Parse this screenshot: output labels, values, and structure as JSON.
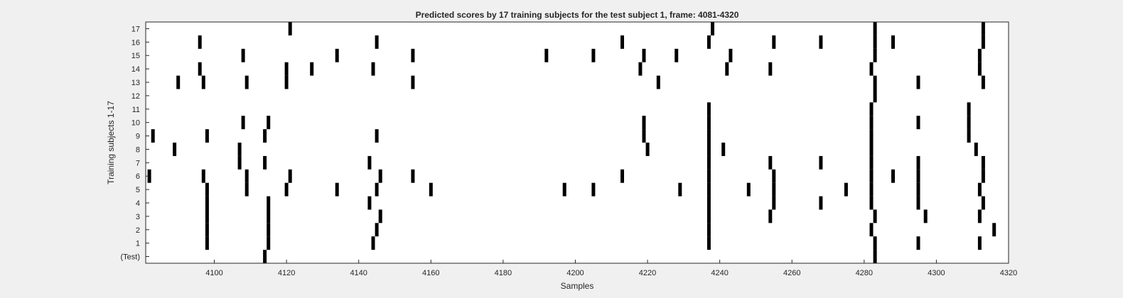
{
  "figure": {
    "background_color": "#f0f0f0",
    "axes_color": "#ffffff",
    "mark_color": "#000000"
  },
  "chart_data": {
    "type": "scatter",
    "title": "Predicted scores by 17 training subjects for the test subject 1, frame: 4081-4320",
    "xlabel": "Samples",
    "ylabel": "Training subjects 1-17",
    "xlim": [
      4081,
      4320
    ],
    "xticks": [
      4100,
      4120,
      4140,
      4160,
      4180,
      4200,
      4220,
      4240,
      4260,
      4280,
      4300,
      4320
    ],
    "yticks": [
      "(Test)",
      "1",
      "2",
      "3",
      "4",
      "5",
      "6",
      "7",
      "8",
      "9",
      "10",
      "11",
      "12",
      "13",
      "14",
      "15",
      "16",
      "17"
    ],
    "grid": false,
    "legend": "none",
    "rows": [
      {
        "label": "(Test)",
        "x": [
          4114,
          4283
        ]
      },
      {
        "label": "1",
        "x": [
          4098,
          4115,
          4144,
          4237,
          4283,
          4295,
          4312
        ]
      },
      {
        "label": "2",
        "x": [
          4098,
          4115,
          4145,
          4237,
          4282,
          4316
        ]
      },
      {
        "label": "3",
        "x": [
          4098,
          4115,
          4146,
          4237,
          4254,
          4283,
          4297,
          4312
        ]
      },
      {
        "label": "4",
        "x": [
          4098,
          4115,
          4143,
          4237,
          4255,
          4268,
          4282,
          4295,
          4313
        ]
      },
      {
        "label": "5",
        "x": [
          4098,
          4109,
          4120,
          4134,
          4145,
          4160,
          4197,
          4205,
          4229,
          4237,
          4248,
          4255,
          4275,
          4282,
          4295,
          4312
        ]
      },
      {
        "label": "6",
        "x": [
          4082,
          4097,
          4109,
          4121,
          4146,
          4155,
          4213,
          4237,
          4255,
          4282,
          4288,
          4295,
          4313
        ]
      },
      {
        "label": "7",
        "x": [
          4107,
          4114,
          4143,
          4237,
          4254,
          4268,
          4282,
          4295,
          4313
        ]
      },
      {
        "label": "8",
        "x": [
          4089,
          4107,
          4220,
          4237,
          4241,
          4282,
          4311
        ]
      },
      {
        "label": "9",
        "x": [
          4083,
          4098,
          4114,
          4145,
          4219,
          4237,
          4282,
          4309
        ]
      },
      {
        "label": "10",
        "x": [
          4108,
          4115,
          4219,
          4237,
          4282,
          4295,
          4309
        ]
      },
      {
        "label": "11",
        "x": [
          4237,
          4282,
          4309
        ]
      },
      {
        "label": "12",
        "x": [
          4283
        ]
      },
      {
        "label": "13",
        "x": [
          4090,
          4097,
          4109,
          4120,
          4155,
          4223,
          4283,
          4295,
          4313
        ]
      },
      {
        "label": "14",
        "x": [
          4096,
          4120,
          4127,
          4144,
          4218,
          4242,
          4254,
          4282,
          4312
        ]
      },
      {
        "label": "15",
        "x": [
          4108,
          4134,
          4155,
          4192,
          4205,
          4219,
          4228,
          4243,
          4283,
          4312
        ]
      },
      {
        "label": "16",
        "x": [
          4096,
          4145,
          4213,
          4237,
          4255,
          4268,
          4283,
          4288,
          4313
        ]
      },
      {
        "label": "17",
        "x": [
          4121,
          4238,
          4283,
          4313
        ]
      }
    ]
  }
}
